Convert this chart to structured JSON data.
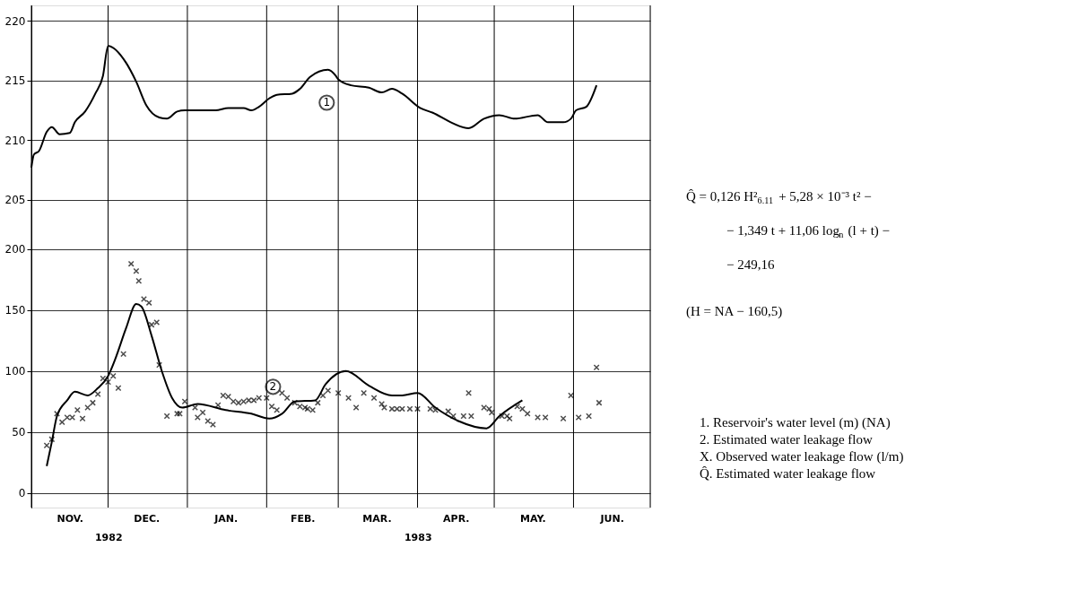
{
  "chart_data": {
    "type": "line",
    "xlim": [
      "1982-11-01",
      "1983-07-01"
    ],
    "xticks": [
      {
        "value": "1982-11-01",
        "label": null
      },
      {
        "value": "1982-11-16",
        "label": "NOV."
      },
      {
        "value": "1982-12-01",
        "label": null
      },
      {
        "value": "1982-12-16",
        "label": "DEC."
      },
      {
        "value": "1983-01-01",
        "label": null
      },
      {
        "value": "1983-01-16",
        "label": "JAN."
      },
      {
        "value": "1983-02-01",
        "label": null
      },
      {
        "value": "1983-02-15",
        "label": "FEB."
      },
      {
        "value": "1983-03-01",
        "label": null
      },
      {
        "value": "1983-03-16",
        "label": "MAR."
      },
      {
        "value": "1983-04-01",
        "label": null
      },
      {
        "value": "1983-04-16",
        "label": "APR."
      },
      {
        "value": "1983-05-01",
        "label": null
      },
      {
        "value": "1983-05-16",
        "label": "MAY."
      },
      {
        "value": "1983-06-01",
        "label": null
      },
      {
        "value": "1983-06-16",
        "label": "JUN."
      },
      {
        "value": "1983-07-01",
        "label": null
      }
    ],
    "ylim": [
      -12,
      400
    ],
    "yticks": [
      0,
      50,
      100,
      150,
      200
    ],
    "y2lim": [
      179.2,
      221.3
    ],
    "y2ticks": [
      205,
      210,
      215,
      220
    ],
    "grid": true,
    "series": [
      {
        "name": "1",
        "axis": "y2",
        "color": "#000000",
        "x": [
          "1982-11-01",
          "1982-11-02",
          "1982-11-04",
          "1982-11-07",
          "1982-11-09",
          "1982-11-12",
          "1982-11-16",
          "1982-11-18",
          "1982-11-22",
          "1982-11-26",
          "1982-11-29",
          "1982-12-01",
          "1982-12-08",
          "1982-12-12",
          "1982-12-16",
          "1982-12-21",
          "1982-12-24",
          "1982-12-28",
          "1982-12-31",
          "1983-01-12",
          "1983-01-17",
          "1983-01-23",
          "1983-01-26",
          "1983-01-29",
          "1983-02-02",
          "1983-02-05",
          "1983-02-11",
          "1983-02-14",
          "1983-02-18",
          "1983-02-25",
          "1983-02-28",
          "1983-03-01",
          "1983-03-06",
          "1983-03-13",
          "1983-03-18",
          "1983-03-22",
          "1983-03-26",
          "1983-04-02",
          "1983-04-07",
          "1983-04-14",
          "1983-04-21",
          "1983-04-27",
          "1983-05-03",
          "1983-05-09",
          "1983-05-18",
          "1983-05-22",
          "1983-05-28",
          "1983-05-31",
          "1983-06-02",
          "1983-06-06",
          "1983-06-10"
        ],
        "values": [
          207.7,
          208.8,
          209.1,
          210.7,
          211.1,
          210.5,
          210.6,
          211.5,
          212.4,
          213.9,
          215.4,
          217.9,
          216.5,
          214.9,
          212.9,
          211.9,
          211.8,
          212.4,
          212.5,
          212.5,
          212.7,
          212.7,
          212.5,
          212.8,
          213.5,
          213.8,
          213.9,
          214.3,
          215.3,
          215.9,
          215.4,
          215.1,
          214.6,
          214.4,
          214.0,
          214.3,
          213.9,
          212.7,
          212.3,
          211.5,
          211.0,
          211.8,
          212.1,
          211.8,
          212.1,
          211.5,
          211.5,
          211.8,
          212.5,
          212.8,
          214.6
        ]
      },
      {
        "name": "2",
        "color": "#000000",
        "x": [
          "1982-11-07",
          "1982-11-09",
          "1982-11-11",
          "1982-11-15",
          "1982-11-18",
          "1982-11-23",
          "1982-11-27",
          "1982-12-01",
          "1982-12-04",
          "1982-12-08",
          "1982-12-12",
          "1982-12-14",
          "1982-12-18",
          "1982-12-22",
          "1982-12-26",
          "1982-12-30",
          "1983-01-05",
          "1983-01-16",
          "1983-01-26",
          "1983-02-02",
          "1983-02-07",
          "1983-02-12",
          "1983-02-20",
          "1983-02-24",
          "1983-03-04",
          "1983-03-13",
          "1983-03-22",
          "1983-03-26",
          "1983-04-01",
          "1983-04-08",
          "1983-04-17",
          "1983-04-28",
          "1983-05-03",
          "1983-05-12"
        ],
        "values": [
          22,
          42,
          63,
          76,
          83,
          80,
          86,
          96,
          111,
          135,
          155,
          153,
          129,
          100,
          78,
          70,
          73,
          68,
          65,
          61,
          65,
          75,
          76,
          89,
          100,
          88,
          80,
          80,
          82,
          70,
          59,
          53,
          63,
          76
        ]
      },
      {
        "type": "scatter",
        "marker": "cross",
        "color": "#000000",
        "x": [
          "1982-11-07",
          "1982-11-09",
          "1982-11-11",
          "1982-11-13",
          "1982-11-15",
          "1982-11-17",
          "1982-11-19",
          "1982-11-21",
          "1982-11-23",
          "1982-11-25",
          "1982-11-27",
          "1982-11-29",
          "1982-12-01",
          "1982-12-03",
          "1982-12-05",
          "1982-12-07",
          "1982-12-10",
          "1982-12-12",
          "1982-12-13",
          "1982-12-15",
          "1982-12-17",
          "1982-12-18",
          "1982-12-20",
          "1982-12-21",
          "1982-12-24",
          "1982-12-28",
          "1982-12-29",
          "1982-12-31",
          "1983-01-04",
          "1983-01-05",
          "1983-01-07",
          "1983-01-09",
          "1983-01-11",
          "1983-01-13",
          "1983-01-15",
          "1983-01-17",
          "1983-01-19",
          "1983-01-21",
          "1983-01-23",
          "1983-01-25",
          "1983-01-27",
          "1983-01-29",
          "1983-02-01",
          "1983-02-03",
          "1983-02-05",
          "1983-02-07",
          "1983-02-09",
          "1983-02-12",
          "1983-02-14",
          "1983-02-16",
          "1983-02-17",
          "1983-02-19",
          "1983-02-21",
          "1983-02-23",
          "1983-02-25",
          "1983-03-01",
          "1983-03-05",
          "1983-03-08",
          "1983-03-11",
          "1983-03-15",
          "1983-03-18",
          "1983-03-19",
          "1983-03-22",
          "1983-03-24",
          "1983-03-26",
          "1983-03-29",
          "1983-04-01",
          "1983-04-06",
          "1983-04-08",
          "1983-04-13",
          "1983-04-15",
          "1983-04-19",
          "1983-04-21",
          "1983-04-22",
          "1983-04-27",
          "1983-04-29",
          "1983-04-30",
          "1983-05-04",
          "1983-05-06",
          "1983-05-07",
          "1983-05-10",
          "1983-05-12",
          "1983-05-14",
          "1983-05-18",
          "1983-05-21",
          "1983-05-28",
          "1983-05-31",
          "1983-06-03",
          "1983-06-07",
          "1983-06-10",
          "1983-06-11"
        ],
        "values": [
          39,
          44,
          65,
          58,
          62,
          62,
          68,
          61,
          70,
          74,
          81,
          94,
          91,
          96,
          86,
          114,
          188,
          182,
          174,
          159,
          156,
          138,
          140,
          105,
          63,
          65,
          65,
          75,
          70,
          62,
          66,
          59,
          56,
          72,
          80,
          79,
          75,
          74,
          75,
          76,
          76,
          78,
          78,
          71,
          68,
          82,
          78,
          74,
          71,
          70,
          69,
          68,
          74,
          80,
          84,
          82,
          78,
          70,
          82,
          78,
          73,
          70,
          69,
          69,
          69,
          69,
          69,
          69,
          68,
          67,
          63,
          63,
          82,
          63,
          70,
          69,
          66,
          63,
          63,
          61,
          71,
          69,
          65,
          62,
          62,
          61,
          80,
          62,
          63,
          103,
          74
        ]
      }
    ],
    "annotations": [
      "Q̂ = 0,126 H²$_{6.11}$ + 5,28 × 10⁻³ t² −",
      "− 1,349 t + 11,06 log$_{n}$ (l + t) −",
      "− 249,16",
      "(H = NA − 160,5)",
      "1.  Reservoir's water level (m) (NA)",
      "2.  Estimated water leakage flow",
      "X.  Observed water leakage flow (l/m)",
      "Q̂.  Estimated water leakage flow",
      "1982",
      "1983"
    ]
  }
}
